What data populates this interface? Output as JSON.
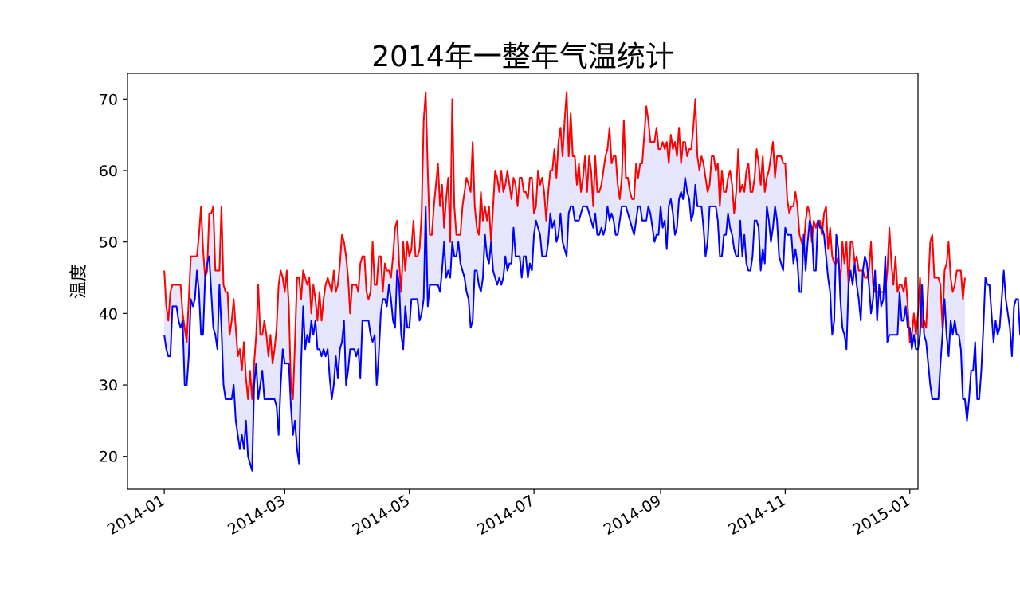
{
  "chart_data": {
    "type": "line",
    "title": "2014年一整年气温统计",
    "xlabel": "",
    "ylabel": "温度",
    "xlim": [
      "2013-12-14",
      "2015-01-05"
    ],
    "ylim": [
      15.4,
      73.6
    ],
    "x_ticks": [
      "2014-01",
      "2014-03",
      "2014-05",
      "2014-07",
      "2014-09",
      "2014-11",
      "2015-01"
    ],
    "y_ticks": [
      20,
      30,
      40,
      50,
      60,
      70
    ],
    "grid": false,
    "legend": "none",
    "fill_between": {
      "color": "#e5e5fb",
      "between": [
        "high",
        "low"
      ]
    },
    "x_start": "2014-01-01",
    "x_step_days": 1,
    "series": [
      {
        "key": "high",
        "color": "#ff0000",
        "values": [
          46,
          41,
          39,
          43,
          44,
          44,
          44,
          44,
          44,
          40,
          38,
          36,
          42,
          48,
          48,
          48,
          48,
          51,
          55,
          49,
          45,
          46,
          54,
          54,
          55,
          46,
          46,
          46,
          55,
          44,
          43,
          43,
          37,
          39,
          42,
          38,
          34,
          35,
          32,
          36,
          31,
          28,
          32,
          28,
          33,
          37,
          44,
          37,
          37,
          39,
          37,
          34,
          37,
          33,
          35,
          38,
          44,
          46,
          45,
          43,
          46,
          41,
          30,
          28,
          36,
          45,
          45,
          42,
          46,
          45,
          44,
          45,
          40,
          44,
          42,
          39,
          43,
          39,
          42,
          44,
          45,
          44,
          43,
          46,
          43,
          44,
          47,
          51,
          50,
          48,
          45,
          40,
          44,
          44,
          44,
          43,
          47,
          48,
          48,
          43,
          42,
          43,
          50,
          44,
          44,
          48,
          48,
          43,
          47,
          46,
          46,
          45,
          48,
          52,
          53,
          47,
          43,
          50,
          46,
          50,
          48,
          49,
          53,
          48,
          48,
          49,
          54,
          67,
          71,
          60,
          51,
          51,
          55,
          58,
          61,
          55,
          58,
          52,
          56,
          59,
          50,
          70,
          55,
          51,
          51,
          51,
          55,
          57,
          59,
          58,
          57,
          64,
          55,
          52,
          51,
          57,
          53,
          55,
          53,
          55,
          50,
          55,
          60,
          59,
          57,
          60,
          57,
          58,
          60,
          58,
          56,
          59,
          58,
          55,
          59,
          59,
          57,
          57,
          56,
          59,
          59,
          54,
          55,
          60,
          58,
          59,
          57,
          53,
          57,
          60,
          60,
          63,
          59,
          64,
          66,
          62,
          67,
          71,
          62,
          68,
          62,
          62,
          58,
          61,
          57,
          59,
          62,
          57,
          62,
          60,
          55,
          62,
          57,
          57,
          58,
          60,
          62,
          63,
          66,
          61,
          62,
          62,
          58,
          56,
          59,
          67,
          59,
          59,
          57,
          56,
          56,
          61,
          59,
          61,
          61,
          65,
          69,
          67,
          64,
          64,
          64,
          66,
          63,
          63,
          64,
          63,
          64,
          61,
          65,
          63,
          64,
          62,
          66,
          61,
          64,
          64,
          62,
          63,
          63,
          66,
          70,
          62,
          60,
          62,
          61,
          59,
          57,
          58,
          62,
          62,
          60,
          61,
          55,
          60,
          57,
          57,
          59,
          60,
          58,
          54,
          57,
          63,
          57,
          58,
          57,
          60,
          61,
          57,
          57,
          59,
          63,
          61,
          58,
          62,
          57,
          59,
          60,
          62,
          64,
          59,
          62,
          62,
          62,
          61,
          61,
          56,
          54,
          55,
          55,
          57,
          55,
          51,
          50,
          49,
          53,
          55,
          54,
          50,
          53,
          52,
          53,
          53,
          51,
          54,
          55,
          49,
          52,
          48,
          47,
          47,
          48,
          44,
          50,
          47,
          50,
          44,
          50,
          50,
          47,
          48,
          46,
          46,
          46,
          45,
          45,
          46,
          50,
          44,
          43,
          43,
          43,
          43,
          43,
          43,
          46,
          52,
          47,
          44,
          48,
          43,
          44,
          44,
          43,
          45,
          41,
          36,
          37,
          40,
          37,
          40,
          45,
          38,
          39,
          38,
          44,
          50,
          51,
          45,
          45,
          45,
          44,
          38,
          46,
          47,
          50,
          45,
          43,
          44,
          46,
          46,
          46,
          42,
          45
        ]
      },
      {
        "key": "low",
        "color": "#0000ff",
        "values": [
          37,
          35,
          34,
          34,
          41,
          41,
          41,
          39,
          38,
          39,
          30,
          30,
          34,
          42,
          41,
          42,
          46,
          43,
          37,
          37,
          45,
          47,
          48,
          43,
          38,
          37,
          35,
          44,
          38,
          30,
          28,
          28,
          28,
          28,
          30,
          25,
          23,
          21,
          23,
          21,
          25,
          20,
          19,
          18,
          30,
          33,
          28,
          30,
          32,
          28,
          28,
          28,
          28,
          28,
          28,
          27,
          23,
          30,
          35,
          33,
          33,
          33,
          27,
          23,
          25,
          21,
          19,
          33,
          41,
          35,
          37,
          36,
          39,
          37,
          39,
          35,
          35,
          34,
          35,
          34,
          35,
          31,
          28,
          30,
          34,
          31,
          35,
          36,
          39,
          30,
          32,
          35,
          35,
          35,
          34,
          35,
          31,
          39,
          39,
          39,
          39,
          37,
          36,
          37,
          30,
          34,
          40,
          42,
          42,
          41,
          44,
          42,
          39,
          38,
          46,
          44,
          37,
          35,
          41,
          38,
          38,
          42,
          42,
          42,
          42,
          39,
          40,
          42,
          55,
          41,
          44,
          44,
          44,
          44,
          44,
          43,
          46,
          50,
          45,
          46,
          45,
          50,
          48,
          48,
          50,
          47,
          46,
          45,
          43,
          42,
          38,
          39,
          46,
          46,
          44,
          43,
          45,
          51,
          48,
          47,
          50,
          46,
          45,
          44,
          45,
          44,
          45,
          48,
          46,
          47,
          47,
          52,
          48,
          48,
          48,
          45,
          48,
          48,
          45,
          47,
          46,
          51,
          53,
          52,
          51,
          48,
          48,
          48,
          50,
          54,
          52,
          53,
          50,
          51,
          54,
          50,
          49,
          48,
          54,
          55,
          55,
          53,
          53,
          53,
          54,
          55,
          55,
          55,
          54,
          53,
          52,
          54,
          51,
          51,
          52,
          51,
          52,
          55,
          53,
          54,
          53,
          51,
          51,
          53,
          55,
          55,
          55,
          54,
          53,
          52,
          51,
          53,
          55,
          55,
          53,
          53,
          53,
          55,
          54,
          52,
          50,
          51,
          51,
          55,
          52,
          53,
          49,
          55,
          56,
          54,
          51,
          52,
          56,
          57,
          56,
          59,
          57,
          56,
          53,
          54,
          58,
          55,
          55,
          55,
          52,
          48,
          50,
          55,
          55,
          55,
          55,
          53,
          48,
          48,
          51,
          51,
          54,
          52,
          51,
          49,
          48,
          48,
          53,
          48,
          51,
          47,
          46,
          46,
          48,
          53,
          53,
          52,
          46,
          49,
          47,
          55,
          53,
          50,
          52,
          55,
          53,
          48,
          47,
          46,
          52,
          51,
          51,
          51,
          47,
          49,
          47,
          43,
          43,
          51,
          46,
          50,
          53,
          52,
          46,
          46,
          53,
          52,
          52,
          51,
          48,
          45,
          43,
          37,
          39,
          51,
          49,
          42,
          38,
          37,
          35,
          44,
          46,
          44,
          47,
          44,
          42,
          39,
          46,
          48,
          47,
          44,
          40,
          42,
          46,
          39,
          44,
          41,
          42,
          48,
          36,
          37,
          37,
          37,
          37,
          37,
          43,
          39,
          39,
          41,
          38,
          38,
          35,
          37,
          35,
          35,
          37,
          44,
          37,
          36,
          33,
          30,
          28,
          28,
          28,
          28,
          33,
          37,
          42,
          37,
          34,
          39,
          37,
          39,
          37,
          37,
          35,
          28,
          28,
          25,
          28,
          32,
          32,
          36,
          28,
          28,
          32,
          38,
          45,
          44,
          44,
          40,
          36,
          39,
          37,
          38,
          42,
          46,
          42,
          40,
          38,
          34,
          41,
          42,
          42,
          37,
          39
        ]
      }
    ]
  }
}
